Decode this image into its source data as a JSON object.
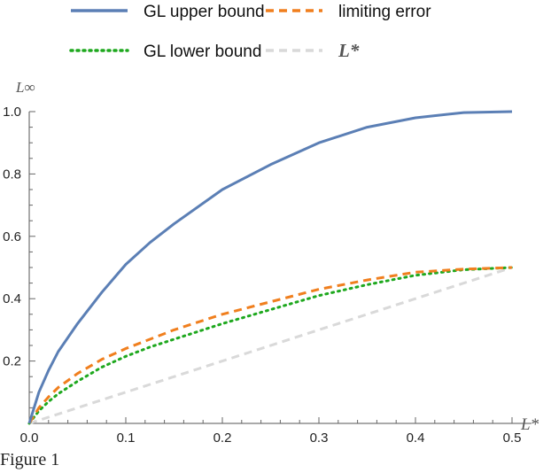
{
  "chart_data": {
    "type": "line",
    "xlabel": "L*",
    "ylabel": "L∞",
    "xlim": [
      0,
      0.5
    ],
    "ylim": [
      0,
      1.0
    ],
    "x_ticks": [
      0.0,
      0.1,
      0.2,
      0.3,
      0.4,
      0.5
    ],
    "y_ticks": [
      0.2,
      0.4,
      0.6,
      0.8,
      1.0
    ],
    "x_tick_labels": [
      "0.0",
      "0.1",
      "0.2",
      "0.3",
      "0.4",
      "0.5"
    ],
    "y_tick_labels": [
      "0.2",
      "0.4",
      "0.6",
      "0.8",
      "1.0"
    ],
    "legend_placement": "top",
    "grid": false,
    "series": [
      {
        "name": "GL upper bound",
        "color": "#5b7fb5",
        "style": "solid",
        "x": [
          0,
          0.01,
          0.02,
          0.03,
          0.05,
          0.075,
          0.1,
          0.125,
          0.15,
          0.2,
          0.25,
          0.3,
          0.35,
          0.4,
          0.45,
          0.5
        ],
        "y": [
          0,
          0.1,
          0.17,
          0.23,
          0.32,
          0.42,
          0.51,
          0.58,
          0.64,
          0.75,
          0.83,
          0.9,
          0.95,
          0.98,
          0.997,
          1.0
        ]
      },
      {
        "name": "limiting error",
        "color": "#f07f1e",
        "style": "dashed",
        "x": [
          0,
          0.01,
          0.02,
          0.03,
          0.05,
          0.075,
          0.1,
          0.125,
          0.15,
          0.2,
          0.25,
          0.3,
          0.35,
          0.4,
          0.45,
          0.5
        ],
        "y": [
          0,
          0.05,
          0.085,
          0.115,
          0.16,
          0.205,
          0.24,
          0.27,
          0.3,
          0.35,
          0.39,
          0.43,
          0.46,
          0.485,
          0.495,
          0.5
        ]
      },
      {
        "name": "GL lower bound",
        "color": "#1ea81e",
        "style": "dotted",
        "x": [
          0,
          0.01,
          0.02,
          0.03,
          0.05,
          0.075,
          0.1,
          0.125,
          0.15,
          0.2,
          0.25,
          0.3,
          0.35,
          0.4,
          0.45,
          0.5
        ],
        "y": [
          0,
          0.04,
          0.07,
          0.095,
          0.135,
          0.18,
          0.215,
          0.245,
          0.27,
          0.32,
          0.365,
          0.41,
          0.445,
          0.475,
          0.493,
          0.5
        ]
      },
      {
        "name": "L*",
        "color": "#d9d9d9",
        "style": "dashed",
        "x": [
          0,
          0.5
        ],
        "y": [
          0,
          0.5
        ]
      }
    ]
  },
  "caption": "Figure 1"
}
